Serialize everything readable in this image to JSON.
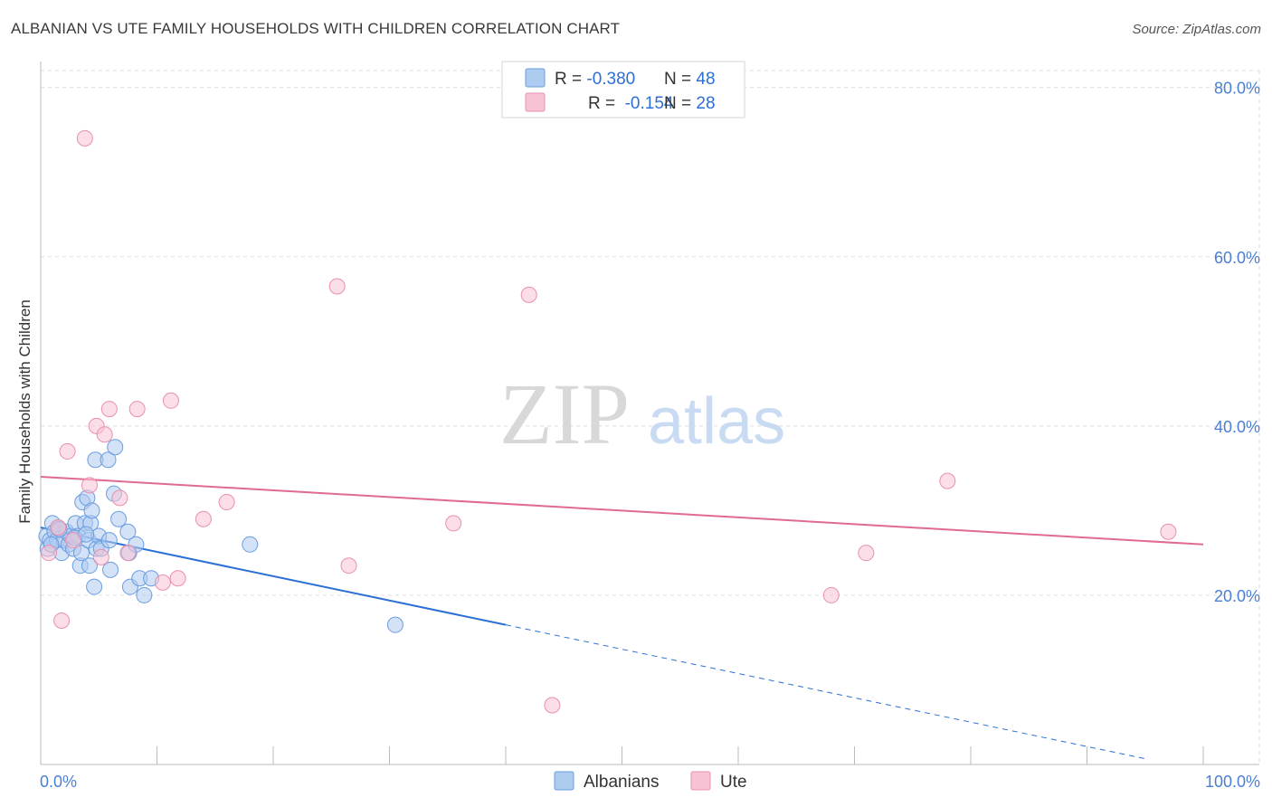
{
  "title": "ALBANIAN VS UTE FAMILY HOUSEHOLDS WITH CHILDREN CORRELATION CHART",
  "source": "Source: ZipAtlas.com",
  "watermark": {
    "zip": "ZIP",
    "atlas": "atlas"
  },
  "colors": {
    "albanians_fill": "#aecbf0",
    "albanians_stroke": "#6a9de0",
    "albanians_line": "#2c6fd4",
    "ute_fill": "#f7c3d4",
    "ute_stroke": "#e890ae",
    "ute_line": "#e06a92",
    "tick_label": "#4a7fd4",
    "grid": "#dddddd"
  },
  "legend": {
    "rows": [
      {
        "r_label": "R = ",
        "r_value": "-0.380",
        "n_label": "N = ",
        "n_value": "48",
        "series": "albanians"
      },
      {
        "r_label": "R = ",
        "r_value": " -0.154",
        "n_label": "N = ",
        "n_value": "28",
        "series": "ute"
      }
    ]
  },
  "chart_data": {
    "type": "scatter",
    "title": "ALBANIAN VS UTE FAMILY HOUSEHOLDS WITH CHILDREN CORRELATION CHART",
    "xlabel": "",
    "ylabel": "Family Households with Children",
    "xlim": [
      0,
      100
    ],
    "ylim": [
      0,
      82
    ],
    "x_tick_labels": [
      "0.0%",
      "100.0%"
    ],
    "y_ticks": [
      20,
      40,
      60,
      80
    ],
    "y_tick_labels": [
      "20.0%",
      "40.0%",
      "60.0%",
      "80.0%"
    ],
    "grid": true,
    "legend_position": "top-center",
    "series": [
      {
        "name": "Albanians",
        "key": "albanians",
        "points": [
          [
            0.5,
            27.0
          ],
          [
            0.6,
            25.5
          ],
          [
            0.8,
            26.5
          ],
          [
            1.0,
            28.5
          ],
          [
            1.2,
            27.5
          ],
          [
            1.4,
            26.5
          ],
          [
            1.5,
            28.0
          ],
          [
            1.8,
            25.0
          ],
          [
            2.0,
            26.5
          ],
          [
            2.2,
            27.5
          ],
          [
            2.4,
            26.0
          ],
          [
            2.6,
            27.0
          ],
          [
            2.8,
            25.5
          ],
          [
            3.0,
            28.5
          ],
          [
            3.2,
            27.0
          ],
          [
            3.4,
            23.5
          ],
          [
            3.5,
            25.0
          ],
          [
            3.6,
            31.0
          ],
          [
            3.8,
            28.5
          ],
          [
            4.0,
            31.5
          ],
          [
            4.1,
            26.5
          ],
          [
            4.3,
            28.5
          ],
          [
            4.2,
            23.5
          ],
          [
            4.4,
            30.0
          ],
          [
            4.6,
            21.0
          ],
          [
            4.8,
            25.5
          ],
          [
            4.7,
            36.0
          ],
          [
            5.0,
            27.0
          ],
          [
            5.2,
            25.5
          ],
          [
            5.8,
            36.0
          ],
          [
            5.9,
            26.5
          ],
          [
            6.0,
            23.0
          ],
          [
            6.3,
            32.0
          ],
          [
            6.4,
            37.5
          ],
          [
            6.7,
            29.0
          ],
          [
            7.5,
            27.5
          ],
          [
            7.6,
            25.0
          ],
          [
            7.7,
            21.0
          ],
          [
            8.2,
            26.0
          ],
          [
            8.5,
            22.0
          ],
          [
            8.9,
            20.0
          ],
          [
            9.5,
            22.0
          ],
          [
            18.0,
            26.0
          ],
          [
            30.5,
            16.5
          ],
          [
            0.9,
            26.0
          ],
          [
            1.6,
            27.8
          ],
          [
            2.9,
            26.8
          ],
          [
            3.9,
            27.2
          ]
        ]
      },
      {
        "name": "Ute",
        "key": "ute",
        "points": [
          [
            0.7,
            25.0
          ],
          [
            1.5,
            28.0
          ],
          [
            1.8,
            17.0
          ],
          [
            2.3,
            37.0
          ],
          [
            2.8,
            26.5
          ],
          [
            4.2,
            33.0
          ],
          [
            4.8,
            40.0
          ],
          [
            5.2,
            24.5
          ],
          [
            5.5,
            39.0
          ],
          [
            5.9,
            42.0
          ],
          [
            6.8,
            31.5
          ],
          [
            7.5,
            25.0
          ],
          [
            8.3,
            42.0
          ],
          [
            10.5,
            21.5
          ],
          [
            11.2,
            43.0
          ],
          [
            11.8,
            22.0
          ],
          [
            14.0,
            29.0
          ],
          [
            16.0,
            31.0
          ],
          [
            25.5,
            56.5
          ],
          [
            26.5,
            23.5
          ],
          [
            35.5,
            28.5
          ],
          [
            42.0,
            55.5
          ],
          [
            44.0,
            7.0
          ],
          [
            68.0,
            20.0
          ],
          [
            71.0,
            25.0
          ],
          [
            78.0,
            33.5
          ],
          [
            97.0,
            27.5
          ],
          [
            3.8,
            74.0
          ]
        ]
      }
    ],
    "trend_lines": [
      {
        "series": "albanians",
        "x_start": 0,
        "x_end": 40,
        "y_start": 28.0,
        "y_end": 16.5,
        "dashed_extension_to": 95
      },
      {
        "series": "ute",
        "x_start": 0,
        "x_end": 100,
        "y_start": 34.0,
        "y_end": 26.0
      }
    ]
  },
  "bottom_legend": [
    {
      "label": "Albanians",
      "series": "albanians"
    },
    {
      "label": "Ute",
      "series": "ute"
    }
  ]
}
